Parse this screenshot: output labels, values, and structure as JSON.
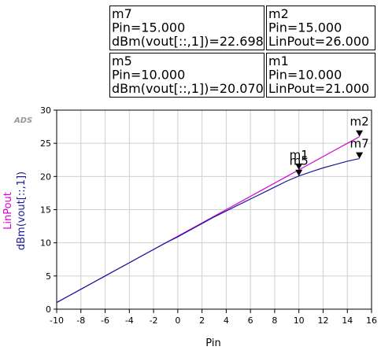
{
  "chart_data": {
    "type": "line",
    "logo": "ADS",
    "xlabel": "Pin",
    "x": [
      -10,
      -9,
      -8,
      -7,
      -6,
      -5,
      -4,
      -3,
      -2,
      -1,
      0,
      1,
      2,
      3,
      4,
      5,
      6,
      7,
      8,
      9,
      10,
      11,
      12,
      13,
      14,
      15
    ],
    "series": [
      {
        "name": "LinPout",
        "color": "#d600d6",
        "values": [
          1,
          2,
          3,
          4,
          5,
          6,
          7,
          8,
          9,
          10,
          11,
          12,
          13,
          14,
          15,
          16,
          17,
          18,
          19,
          20,
          21,
          22,
          23,
          24,
          25,
          26
        ]
      },
      {
        "name": "dBm(vout[::,1])",
        "color": "#1a1a99",
        "values": [
          1.0,
          2.0,
          3.0,
          4.0,
          5.0,
          6.0,
          7.0,
          8.0,
          9.0,
          10.0,
          10.9,
          11.9,
          12.9,
          13.9,
          14.8,
          15.7,
          16.6,
          17.5,
          18.4,
          19.3,
          20.07,
          20.7,
          21.3,
          21.8,
          22.3,
          22.698
        ]
      }
    ],
    "xlim": [
      -10,
      16
    ],
    "ylim": [
      0,
      30
    ],
    "xticks": [
      -10,
      -8,
      -6,
      -4,
      -2,
      0,
      2,
      4,
      6,
      8,
      10,
      12,
      14,
      16
    ],
    "yticks": [
      0,
      5,
      10,
      15,
      20,
      25,
      30
    ],
    "grid": true,
    "markers": [
      {
        "name": "m7",
        "lines": [
          "m7",
          "Pin=15.000",
          "dBm(vout[::,1])=22.698"
        ],
        "x": 15,
        "y": 22.698
      },
      {
        "name": "m2",
        "lines": [
          "m2",
          "Pin=15.000",
          "LinPout=26.000"
        ],
        "x": 15,
        "y": 26
      },
      {
        "name": "m5",
        "lines": [
          "m5",
          "Pin=10.000",
          "dBm(vout[::,1])=20.070"
        ],
        "x": 10,
        "y": 20.07
      },
      {
        "name": "m1",
        "lines": [
          "m1",
          "Pin=10.000",
          "LinPout=21.000"
        ],
        "x": 10,
        "y": 21
      }
    ]
  }
}
